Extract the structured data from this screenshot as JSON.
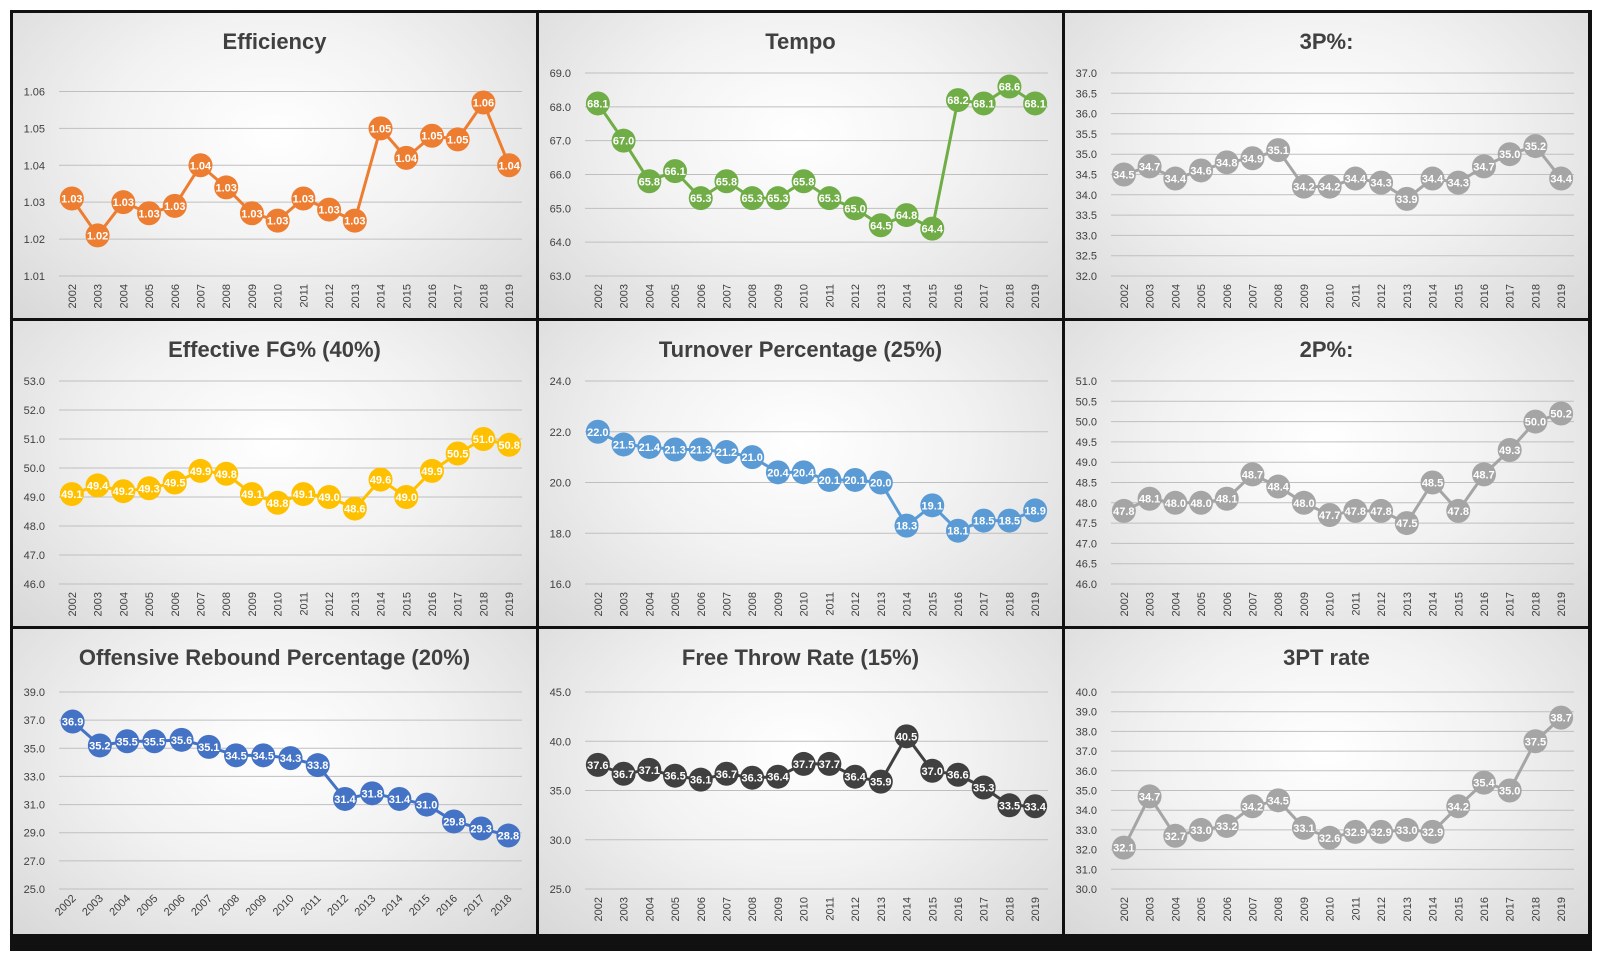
{
  "chart_data": [
    {
      "id": "efficiency",
      "type": "line",
      "title": "Efficiency",
      "color": "#ED7D31",
      "x": [
        "2002",
        "2003",
        "2004",
        "2005",
        "2006",
        "2007",
        "2008",
        "2009",
        "2010",
        "2011",
        "2012",
        "2013",
        "2014",
        "2015",
        "2016",
        "2017",
        "2018",
        "2019"
      ],
      "values": [
        1.031,
        1.021,
        1.03,
        1.027,
        1.029,
        1.04,
        1.034,
        1.027,
        1.025,
        1.031,
        1.028,
        1.025,
        1.05,
        1.042,
        1.048,
        1.047,
        1.057,
        1.04
      ],
      "labels": [
        "1.03",
        "1.02",
        "1.03",
        "1.03",
        "1.03",
        "1.04",
        "1.03",
        "1.03",
        "1.03",
        "1.03",
        "1.03",
        "1.03",
        "1.05",
        "1.04",
        "1.05",
        "1.05",
        "1.06",
        "1.04"
      ],
      "yticks": [
        "1.01",
        "1.02",
        "1.03",
        "1.04",
        "1.05",
        "1.06"
      ],
      "ylim": [
        1.01,
        1.065
      ],
      "tick_values": [
        1.01,
        1.02,
        1.03,
        1.04,
        1.05,
        1.06
      ]
    },
    {
      "id": "tempo",
      "type": "line",
      "title": "Tempo",
      "color": "#70AD47",
      "x": [
        "2002",
        "2003",
        "2004",
        "2005",
        "2006",
        "2007",
        "2008",
        "2009",
        "2010",
        "2011",
        "2012",
        "2013",
        "2014",
        "2015",
        "2016",
        "2017",
        "2018",
        "2019"
      ],
      "values": [
        68.1,
        67.0,
        65.8,
        66.1,
        65.3,
        65.8,
        65.3,
        65.3,
        65.8,
        65.3,
        65.0,
        64.5,
        64.8,
        64.4,
        68.2,
        68.1,
        68.6,
        68.1
      ],
      "labels": [
        "68.1",
        "67.0",
        "65.8",
        "66.1",
        "65.3",
        "65.8",
        "65.3",
        "65.3",
        "65.8",
        "65.3",
        "65.0",
        "64.5",
        "64.8",
        "64.4",
        "68.2",
        "68.1",
        "68.6",
        "68.1"
      ],
      "yticks": [
        "63.0",
        "64.0",
        "65.0",
        "66.0",
        "67.0",
        "68.0",
        "69.0"
      ],
      "ylim": [
        63,
        69
      ],
      "tick_values": [
        63,
        64,
        65,
        66,
        67,
        68,
        69
      ]
    },
    {
      "id": "three-pct",
      "type": "line",
      "title": "3P%:",
      "color": "#A5A5A5",
      "x": [
        "2002",
        "2003",
        "2004",
        "2005",
        "2006",
        "2007",
        "2008",
        "2009",
        "2010",
        "2011",
        "2012",
        "2013",
        "2014",
        "2015",
        "2016",
        "2017",
        "2018",
        "2019"
      ],
      "values": [
        34.5,
        34.7,
        34.4,
        34.6,
        34.8,
        34.9,
        35.1,
        34.2,
        34.2,
        34.4,
        34.3,
        33.9,
        34.4,
        34.3,
        34.7,
        35.0,
        35.2,
        34.4
      ],
      "labels": [
        "34.5",
        "34.7",
        "34.4",
        "34.6",
        "34.8",
        "34.9",
        "35.1",
        "34.2",
        "34.2",
        "34.4",
        "34.3",
        "33.9",
        "34.4",
        "34.3",
        "34.7",
        "35.0",
        "35.2",
        "34.4"
      ],
      "yticks": [
        "32.0",
        "32.5",
        "33.0",
        "33.5",
        "34.0",
        "34.5",
        "35.0",
        "35.5",
        "36.0",
        "36.5",
        "37.0"
      ],
      "ylim": [
        32,
        37
      ],
      "tick_values": [
        32,
        32.5,
        33,
        33.5,
        34,
        34.5,
        35,
        35.5,
        36,
        36.5,
        37
      ]
    },
    {
      "id": "efg",
      "type": "line",
      "title": "Effective FG% (40%)",
      "color": "#FFC000",
      "x": [
        "2002",
        "2003",
        "2004",
        "2005",
        "2006",
        "2007",
        "2008",
        "2009",
        "2010",
        "2011",
        "2012",
        "2013",
        "2014",
        "2015",
        "2016",
        "2017",
        "2018",
        "2019"
      ],
      "values": [
        49.1,
        49.4,
        49.2,
        49.3,
        49.5,
        49.9,
        49.8,
        49.1,
        48.8,
        49.1,
        49.0,
        48.6,
        49.6,
        49.0,
        49.9,
        50.5,
        51.0,
        50.8
      ],
      "labels": [
        "49.1",
        "49.4",
        "49.2",
        "49.3",
        "49.5",
        "49.9",
        "49.8",
        "49.1",
        "48.8",
        "49.1",
        "49.0",
        "48.6",
        "49.6",
        "49.0",
        "49.9",
        "50.5",
        "51.0",
        "50.8"
      ],
      "yticks": [
        "46.0",
        "47.0",
        "48.0",
        "49.0",
        "50.0",
        "51.0",
        "52.0",
        "53.0"
      ],
      "ylim": [
        46,
        53
      ],
      "tick_values": [
        46,
        47,
        48,
        49,
        50,
        51,
        52,
        53
      ]
    },
    {
      "id": "turnover",
      "type": "line",
      "title": "Turnover Percentage (25%)",
      "color": "#5B9BD5",
      "x": [
        "2002",
        "2003",
        "2004",
        "2005",
        "2006",
        "2007",
        "2008",
        "2009",
        "2010",
        "2011",
        "2012",
        "2013",
        "2014",
        "2015",
        "2016",
        "2017",
        "2018",
        "2019"
      ],
      "values": [
        22.0,
        21.5,
        21.4,
        21.3,
        21.3,
        21.2,
        21.0,
        20.4,
        20.4,
        20.1,
        20.1,
        20.0,
        18.3,
        19.1,
        18.1,
        18.5,
        18.5,
        18.9
      ],
      "labels": [
        "22.0",
        "21.5",
        "21.4",
        "21.3",
        "21.3",
        "21.2",
        "21.0",
        "20.4",
        "20.4",
        "20.1",
        "20.1",
        "20.0",
        "18.3",
        "19.1",
        "18.1",
        "18.5",
        "18.5",
        "18.9"
      ],
      "yticks": [
        "16.0",
        "18.0",
        "20.0",
        "22.0",
        "24.0"
      ],
      "ylim": [
        16,
        24
      ],
      "tick_values": [
        16,
        18,
        20,
        22,
        24
      ]
    },
    {
      "id": "two-pct",
      "type": "line",
      "title": "2P%:",
      "color": "#A5A5A5",
      "x": [
        "2002",
        "2003",
        "2004",
        "2005",
        "2006",
        "2007",
        "2008",
        "2009",
        "2010",
        "2011",
        "2012",
        "2013",
        "2014",
        "2015",
        "2016",
        "2017",
        "2018",
        "2019"
      ],
      "values": [
        47.8,
        48.1,
        48.0,
        48.0,
        48.1,
        48.7,
        48.4,
        48.0,
        47.7,
        47.8,
        47.8,
        47.5,
        48.5,
        47.8,
        48.7,
        49.3,
        50.0,
        50.2
      ],
      "labels": [
        "47.8",
        "48.1",
        "48.0",
        "48.0",
        "48.1",
        "48.7",
        "48.4",
        "48.0",
        "47.7",
        "47.8",
        "47.8",
        "47.5",
        "48.5",
        "47.8",
        "48.7",
        "49.3",
        "50.0",
        "50.2"
      ],
      "yticks": [
        "46.0",
        "46.5",
        "47.0",
        "47.5",
        "48.0",
        "48.5",
        "49.0",
        "49.5",
        "50.0",
        "50.5",
        "51.0"
      ],
      "ylim": [
        46,
        51
      ],
      "tick_values": [
        46,
        46.5,
        47,
        47.5,
        48,
        48.5,
        49,
        49.5,
        50,
        50.5,
        51
      ]
    },
    {
      "id": "orb",
      "type": "line",
      "title": "Offensive Rebound Percentage (20%)",
      "color": "#4472C4",
      "x": [
        "2002",
        "2003",
        "2004",
        "2005",
        "2006",
        "2007",
        "2008",
        "2009",
        "2010",
        "2011",
        "2012",
        "2013",
        "2014",
        "2015",
        "2016",
        "2017",
        "2018"
      ],
      "values": [
        36.9,
        35.2,
        35.5,
        35.5,
        35.6,
        35.1,
        34.5,
        34.5,
        34.3,
        33.8,
        31.4,
        31.8,
        31.4,
        31.0,
        29.8,
        29.3,
        28.8
      ],
      "labels": [
        "36.9",
        "35.2",
        "35.5",
        "35.5",
        "35.6",
        "35.1",
        "34.5",
        "34.5",
        "34.3",
        "33.8",
        "31.4",
        "31.8",
        "31.4",
        "31.0",
        "29.8",
        "29.3",
        "28.8"
      ],
      "yticks": [
        "25.0",
        "27.0",
        "29.0",
        "31.0",
        "33.0",
        "35.0",
        "37.0",
        "39.0"
      ],
      "ylim": [
        25,
        39
      ],
      "tick_values": [
        25,
        27,
        29,
        31,
        33,
        35,
        37,
        39
      ],
      "rotated_x": true
    },
    {
      "id": "ftr",
      "type": "line",
      "title": "Free Throw Rate (15%)",
      "color": "#404040",
      "x": [
        "2002",
        "2003",
        "2004",
        "2005",
        "2006",
        "2007",
        "2008",
        "2009",
        "2010",
        "2011",
        "2012",
        "2013",
        "2014",
        "2015",
        "2016",
        "2017",
        "2018",
        "2019"
      ],
      "values": [
        37.6,
        36.7,
        37.1,
        36.5,
        36.1,
        36.7,
        36.3,
        36.4,
        37.7,
        37.7,
        36.4,
        35.9,
        40.5,
        37.0,
        36.6,
        35.3,
        33.5,
        33.4
      ],
      "labels": [
        "37.6",
        "36.7",
        "37.1",
        "36.5",
        "36.1",
        "36.7",
        "36.3",
        "36.4",
        "37.7",
        "37.7",
        "36.4",
        "35.9",
        "40.5",
        "37.0",
        "36.6",
        "35.3",
        "33.5",
        "33.4"
      ],
      "yticks": [
        "25.0",
        "30.0",
        "35.0",
        "40.0",
        "45.0"
      ],
      "ylim": [
        25,
        45
      ],
      "tick_values": [
        25,
        30,
        35,
        40,
        45
      ]
    },
    {
      "id": "three-rate",
      "type": "line",
      "title": "3PT rate",
      "color": "#A5A5A5",
      "x": [
        "2002",
        "2003",
        "2004",
        "2005",
        "2006",
        "2007",
        "2008",
        "2009",
        "2010",
        "2011",
        "2012",
        "2013",
        "2014",
        "2015",
        "2016",
        "2017",
        "2018",
        "2019"
      ],
      "values": [
        32.1,
        34.7,
        32.7,
        33.0,
        33.2,
        34.2,
        34.5,
        33.1,
        32.6,
        32.9,
        32.9,
        33.0,
        32.9,
        34.2,
        35.4,
        35.0,
        37.5,
        38.7
      ],
      "labels": [
        "32.1",
        "34.7",
        "32.7",
        "33.0",
        "33.2",
        "34.2",
        "34.5",
        "33.1",
        "32.6",
        "32.9",
        "32.9",
        "33.0",
        "32.9",
        "34.2",
        "35.4",
        "35.0",
        "37.5",
        "38.7"
      ],
      "yticks": [
        "30.0",
        "31.0",
        "32.0",
        "33.0",
        "34.0",
        "35.0",
        "36.0",
        "37.0",
        "38.0",
        "39.0",
        "40.0"
      ],
      "ylim": [
        30,
        40
      ],
      "tick_values": [
        30,
        31,
        32,
        33,
        34,
        35,
        36,
        37,
        38,
        39,
        40
      ]
    }
  ]
}
